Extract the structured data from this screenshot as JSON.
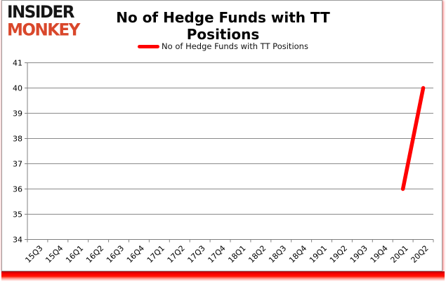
{
  "logo": {
    "line1": "INSIDER",
    "line2": "MONKEY",
    "brand_color": "#d9472b"
  },
  "header": {
    "title": "No of Hedge Funds with TT Positions"
  },
  "legend": {
    "label": "No of Hedge Funds with TT Positions",
    "marker_color": "#ff0000"
  },
  "chart_data": {
    "type": "line",
    "title": "No of Hedge Funds with TT Positions",
    "categories": [
      "15Q3",
      "15Q4",
      "16Q1",
      "16Q2",
      "16Q3",
      "16Q4",
      "17Q1",
      "17Q2",
      "17Q3",
      "17Q4",
      "18Q1",
      "18Q2",
      "18Q3",
      "18Q4",
      "19Q1",
      "19Q2",
      "19Q3",
      "19Q4",
      "20Q1",
      "20Q2"
    ],
    "series": [
      {
        "name": "No of Hedge Funds with TT Positions",
        "color": "#ff0000",
        "values": [
          null,
          null,
          null,
          null,
          null,
          null,
          null,
          null,
          null,
          null,
          null,
          null,
          null,
          null,
          null,
          null,
          null,
          null,
          36,
          40
        ]
      }
    ],
    "ylim": [
      34,
      41
    ],
    "ytick_step": 1,
    "xlabel": "",
    "ylabel": "",
    "grid": true,
    "legend_position": "top",
    "x_label_rotation": -45
  }
}
